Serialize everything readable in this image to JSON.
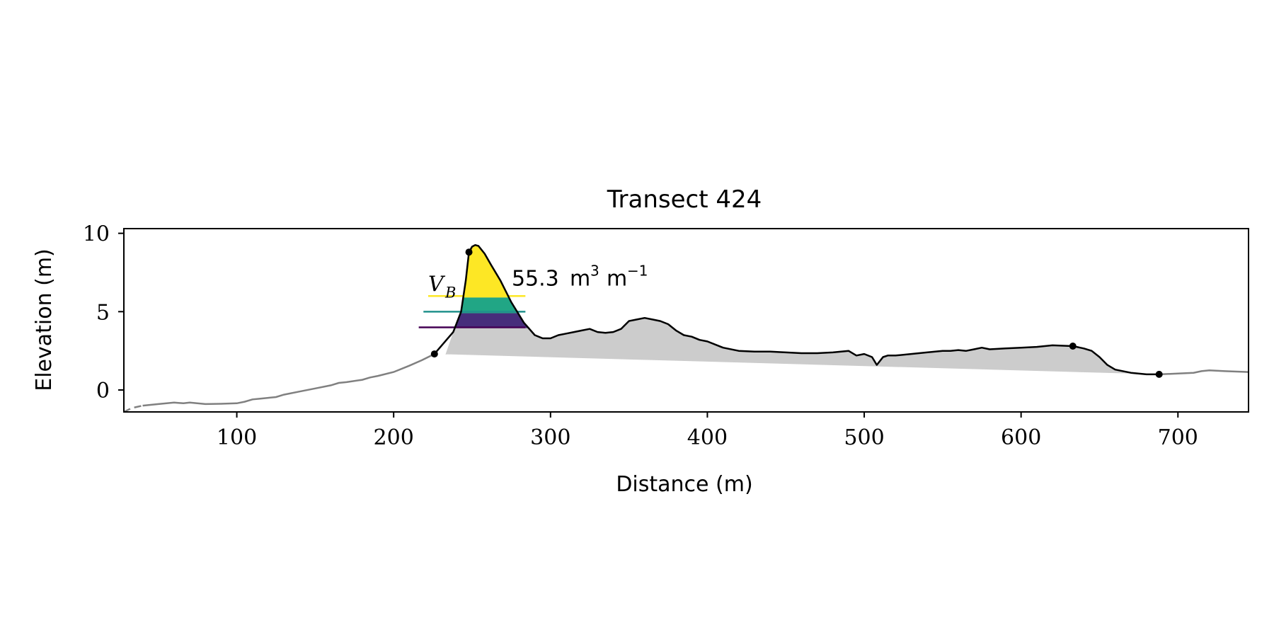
{
  "chart_data": {
    "type": "line",
    "title": "Transect 424",
    "xlabel": "Distance (m)",
    "ylabel": "Elevation (m)",
    "xlim": [
      28,
      745
    ],
    "ylim": [
      -1.4,
      10.3
    ],
    "xticks": [
      100,
      200,
      300,
      400,
      500,
      600,
      700
    ],
    "yticks": [
      0,
      5,
      10
    ],
    "grid": false,
    "legend": "none",
    "colors": {
      "profile": "#808080",
      "dune": "#000000",
      "fill": "#cccccc",
      "band_top": "#fde725",
      "band_mid": "#21a685",
      "band_low": "#472d7b",
      "line_top": "#fde725",
      "line_mid": "#21918c",
      "line_low": "#440154"
    },
    "profile": {
      "x": [
        28,
        33,
        40,
        50,
        60,
        66,
        70,
        80,
        90,
        100,
        105,
        110,
        115,
        120,
        125,
        130,
        140,
        150,
        160,
        165,
        170,
        180,
        185,
        190,
        200,
        210,
        218,
        226
      ],
      "y": [
        -1.4,
        -1.15,
        -1.0,
        -0.9,
        -0.8,
        -0.85,
        -0.8,
        -0.9,
        -0.88,
        -0.85,
        -0.75,
        -0.6,
        -0.55,
        -0.5,
        -0.45,
        -0.3,
        -0.1,
        0.1,
        0.3,
        0.45,
        0.5,
        0.65,
        0.8,
        0.9,
        1.15,
        1.55,
        1.9,
        2.3
      ]
    },
    "seaward_profile": {
      "x": [
        688,
        700,
        710,
        715,
        720,
        730,
        745
      ],
      "y": [
        1.0,
        1.05,
        1.1,
        1.2,
        1.25,
        1.2,
        1.15
      ]
    },
    "dune_profile": {
      "x": [
        226,
        232,
        238,
        243,
        246,
        248,
        250,
        252,
        254,
        258,
        262,
        268,
        275,
        283,
        290,
        295,
        300,
        305,
        310,
        315,
        320,
        325,
        330,
        335,
        340,
        345,
        350,
        355,
        360,
        365,
        370,
        375,
        380,
        385,
        390,
        395,
        400,
        410,
        420,
        430,
        440,
        450,
        460,
        470,
        480,
        490,
        495,
        500,
        505,
        508,
        512,
        515,
        520,
        530,
        540,
        550,
        555,
        560,
        565,
        570,
        575,
        580,
        590,
        600,
        610,
        620,
        633,
        640,
        645,
        650,
        655,
        660,
        670,
        680,
        688
      ],
      "y": [
        2.3,
        3.0,
        3.7,
        5.0,
        7.0,
        8.8,
        9.15,
        9.25,
        9.2,
        8.7,
        8.0,
        7.0,
        5.6,
        4.3,
        3.5,
        3.3,
        3.3,
        3.5,
        3.6,
        3.7,
        3.8,
        3.9,
        3.7,
        3.65,
        3.7,
        3.9,
        4.4,
        4.5,
        4.6,
        4.5,
        4.4,
        4.2,
        3.8,
        3.5,
        3.4,
        3.2,
        3.1,
        2.7,
        2.5,
        2.45,
        2.45,
        2.4,
        2.35,
        2.35,
        2.4,
        2.5,
        2.2,
        2.3,
        2.1,
        1.6,
        2.1,
        2.2,
        2.2,
        2.3,
        2.4,
        2.5,
        2.5,
        2.55,
        2.5,
        2.6,
        2.7,
        2.6,
        2.65,
        2.7,
        2.75,
        2.85,
        2.8,
        2.65,
        2.5,
        2.1,
        1.6,
        1.3,
        1.1,
        1.0,
        1.0
      ]
    },
    "base_line": {
      "x": [
        226,
        688
      ],
      "y": [
        2.3,
        1.0
      ]
    },
    "fill_polygon": {
      "x": [
        233,
        238,
        243,
        246,
        248,
        250,
        252,
        254,
        258,
        262,
        268,
        275,
        283,
        290,
        295,
        300,
        305,
        310,
        315,
        320,
        325,
        330,
        335,
        340,
        345,
        350,
        355,
        360,
        365,
        370,
        375,
        380,
        385,
        390,
        395,
        400,
        410,
        420,
        430,
        440,
        450,
        460,
        470,
        480,
        490,
        495,
        500,
        505,
        508,
        512,
        515,
        520,
        530,
        540,
        550,
        555,
        560,
        565,
        570,
        575,
        580,
        590,
        600,
        610,
        620,
        633,
        640,
        645,
        650,
        655,
        660,
        670
      ],
      "y": [
        2.25,
        3.7,
        5.0,
        7.0,
        8.8,
        9.15,
        9.25,
        9.2,
        8.7,
        8.0,
        7.0,
        5.6,
        4.3,
        3.5,
        3.3,
        3.3,
        3.5,
        3.6,
        3.7,
        3.8,
        3.9,
        3.7,
        3.65,
        3.7,
        3.9,
        4.4,
        4.5,
        4.6,
        4.5,
        4.4,
        4.2,
        3.8,
        3.5,
        3.4,
        3.2,
        3.1,
        2.7,
        2.5,
        2.45,
        2.45,
        2.4,
        2.35,
        2.35,
        2.4,
        2.5,
        2.2,
        2.3,
        2.1,
        1.6,
        2.1,
        2.2,
        2.2,
        2.3,
        2.4,
        2.5,
        2.5,
        2.55,
        2.5,
        2.6,
        2.7,
        2.6,
        2.65,
        2.7,
        2.75,
        2.85,
        2.8,
        2.65,
        2.5,
        2.1,
        1.6,
        1.3,
        1.1
      ]
    },
    "bands": [
      {
        "id": "band-top",
        "y0": 5.9,
        "y1": 9.25,
        "color_key": "band_top"
      },
      {
        "id": "band-mid",
        "y0": 4.9,
        "y1": 5.9,
        "color_key": "band_mid"
      },
      {
        "id": "band-low",
        "y0": 3.95,
        "y1": 4.9,
        "color_key": "band_low"
      }
    ],
    "level_lines": [
      {
        "id": "level-top",
        "y": 6.0,
        "x0": 222,
        "color_key": "line_top"
      },
      {
        "id": "level-mid",
        "y": 5.0,
        "x0": 219,
        "color_key": "line_mid"
      },
      {
        "id": "level-low",
        "y": 4.0,
        "x0": 216,
        "color_key": "line_low"
      }
    ],
    "markers": [
      {
        "x": 226,
        "y": 2.3
      },
      {
        "x": 248,
        "y": 8.8
      },
      {
        "x": 633,
        "y": 2.8
      },
      {
        "x": 688,
        "y": 1.0
      }
    ],
    "annotation": {
      "x": 222,
      "y": 6.3,
      "symbol": "V",
      "subscript": "B",
      "value": "55.3",
      "unit": "m",
      "unit_exp": "3",
      "per": "m",
      "per_exp": "−1"
    }
  }
}
